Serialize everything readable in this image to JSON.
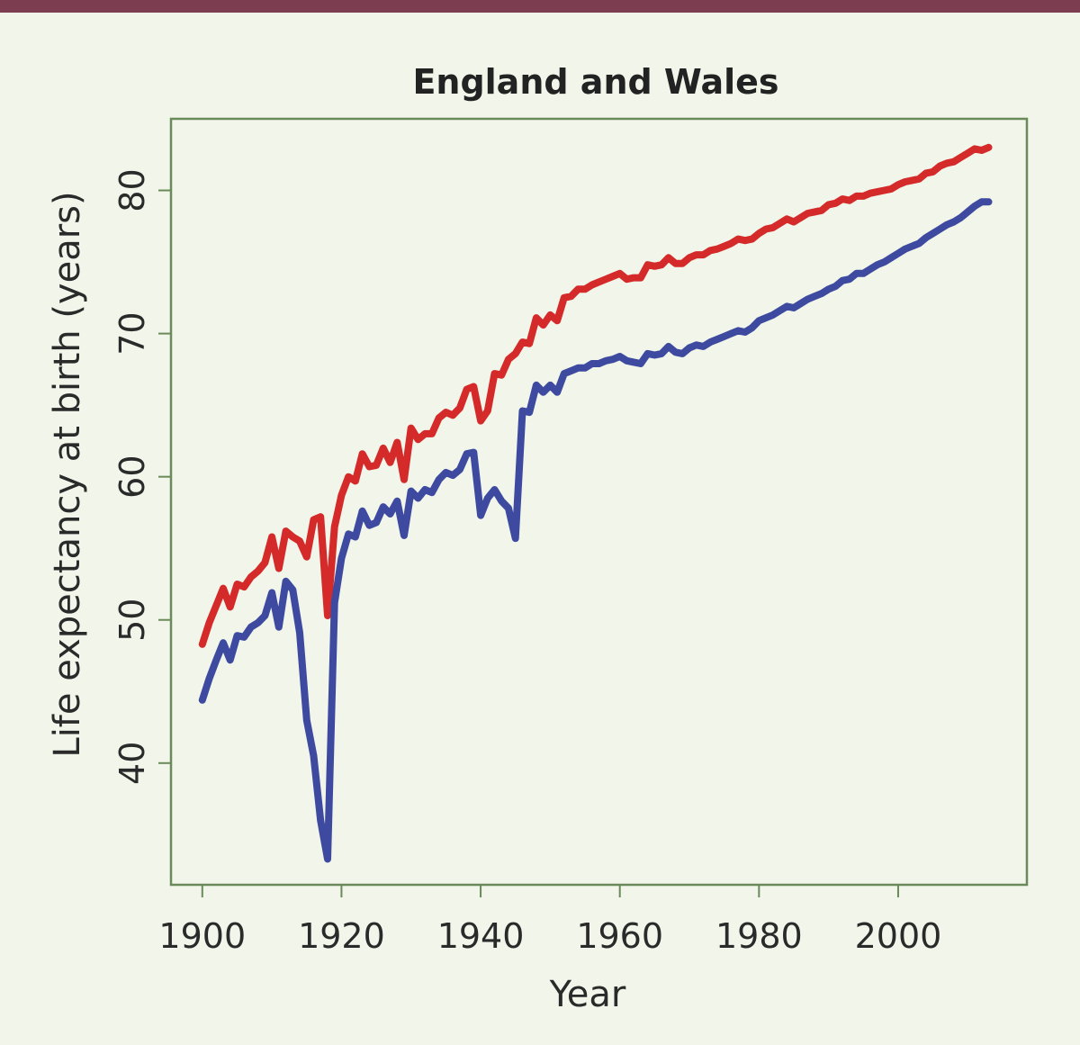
{
  "chart_data": {
    "type": "line",
    "title": "England and Wales",
    "xlabel": "Year",
    "ylabel": "Life expectancy at birth (years)",
    "xlim": [
      1895.5,
      2018.5
    ],
    "ylim": [
      31.5,
      85
    ],
    "xticks": [
      1900,
      1920,
      1940,
      1960,
      1980,
      2000
    ],
    "yticks": [
      40,
      50,
      60,
      70,
      80
    ],
    "grid": false,
    "legend": "none",
    "x": [
      1900,
      1901,
      1902,
      1903,
      1904,
      1905,
      1906,
      1907,
      1908,
      1909,
      1910,
      1911,
      1912,
      1913,
      1914,
      1915,
      1916,
      1917,
      1918,
      1919,
      1920,
      1921,
      1922,
      1923,
      1924,
      1925,
      1926,
      1927,
      1928,
      1929,
      1930,
      1931,
      1932,
      1933,
      1934,
      1935,
      1936,
      1937,
      1938,
      1939,
      1940,
      1941,
      1942,
      1943,
      1944,
      1945,
      1946,
      1947,
      1948,
      1949,
      1950,
      1951,
      1952,
      1953,
      1954,
      1955,
      1956,
      1957,
      1958,
      1959,
      1960,
      1961,
      1962,
      1963,
      1964,
      1965,
      1966,
      1967,
      1968,
      1969,
      1970,
      1971,
      1972,
      1973,
      1974,
      1975,
      1976,
      1977,
      1978,
      1979,
      1980,
      1981,
      1982,
      1983,
      1984,
      1985,
      1986,
      1987,
      1988,
      1989,
      1990,
      1991,
      1992,
      1993,
      1994,
      1995,
      1996,
      1997,
      1998,
      1999,
      2000,
      2001,
      2002,
      2003,
      2004,
      2005,
      2006,
      2007,
      2008,
      2009,
      2010,
      2011,
      2012,
      2013
    ],
    "series": [
      {
        "color": "#d42a2a",
        "values": [
          48.3,
          49.8,
          51.0,
          52.2,
          50.9,
          52.5,
          52.3,
          53.0,
          53.4,
          54.0,
          55.8,
          53.6,
          56.2,
          55.8,
          55.5,
          54.4,
          57.0,
          57.2,
          50.3,
          56.5,
          58.7,
          60.0,
          59.7,
          61.6,
          60.7,
          60.8,
          62.0,
          61.0,
          62.4,
          59.8,
          63.4,
          62.6,
          63.0,
          63.0,
          64.1,
          64.5,
          64.3,
          64.8,
          66.1,
          66.3,
          63.9,
          64.6,
          67.2,
          67.1,
          68.2,
          68.6,
          69.4,
          69.3,
          71.1,
          70.6,
          71.3,
          70.9,
          72.5,
          72.6,
          73.1,
          73.1,
          73.4,
          73.6,
          73.8,
          74.0,
          74.2,
          73.8,
          73.9,
          73.9,
          74.8,
          74.7,
          74.8,
          75.3,
          74.9,
          74.9,
          75.3,
          75.5,
          75.5,
          75.8,
          75.9,
          76.1,
          76.3,
          76.6,
          76.5,
          76.6,
          77.0,
          77.3,
          77.4,
          77.7,
          78.0,
          77.8,
          78.1,
          78.4,
          78.5,
          78.6,
          79.0,
          79.1,
          79.4,
          79.3,
          79.6,
          79.6,
          79.8,
          79.9,
          80.0,
          80.1,
          80.4,
          80.6,
          80.7,
          80.8,
          81.2,
          81.3,
          81.7,
          81.9,
          82.0,
          82.3,
          82.6,
          82.9,
          82.8,
          83.0
        ]
      },
      {
        "color": "#3d4aa0",
        "values": [
          44.4,
          45.9,
          47.2,
          48.4,
          47.2,
          48.9,
          48.8,
          49.5,
          49.8,
          50.3,
          51.9,
          49.5,
          52.7,
          52.1,
          49.1,
          43.0,
          40.5,
          36.0,
          33.3,
          51.2,
          54.3,
          56.0,
          55.8,
          57.6,
          56.6,
          56.8,
          57.9,
          57.4,
          58.3,
          55.9,
          59.0,
          58.5,
          59.1,
          58.9,
          59.8,
          60.3,
          60.1,
          60.5,
          61.6,
          61.7,
          57.3,
          58.5,
          59.1,
          58.3,
          57.8,
          55.7,
          64.6,
          64.5,
          66.4,
          65.9,
          66.4,
          65.9,
          67.2,
          67.4,
          67.6,
          67.6,
          67.9,
          67.9,
          68.1,
          68.2,
          68.4,
          68.1,
          68.0,
          67.9,
          68.6,
          68.5,
          68.6,
          69.1,
          68.7,
          68.6,
          69.0,
          69.2,
          69.1,
          69.4,
          69.6,
          69.8,
          70.0,
          70.2,
          70.1,
          70.4,
          70.9,
          71.1,
          71.3,
          71.6,
          71.9,
          71.8,
          72.1,
          72.4,
          72.6,
          72.8,
          73.1,
          73.3,
          73.7,
          73.8,
          74.2,
          74.2,
          74.5,
          74.8,
          75.0,
          75.3,
          75.6,
          75.9,
          76.1,
          76.3,
          76.7,
          77.0,
          77.3,
          77.6,
          77.8,
          78.1,
          78.5,
          78.9,
          79.2,
          79.2
        ]
      }
    ]
  }
}
